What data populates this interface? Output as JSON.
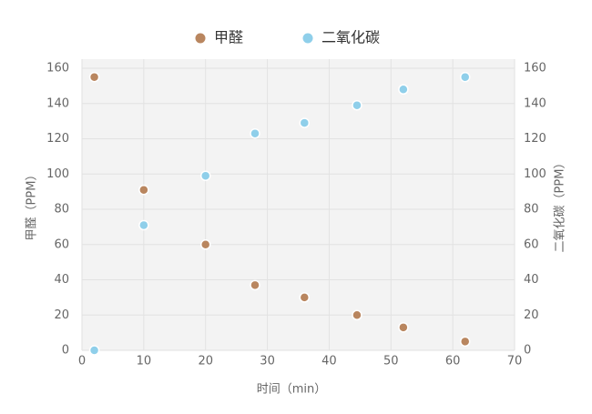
{
  "chart_data": {
    "type": "scatter",
    "xlabel": "时间（min）",
    "ylabel": "甲醛（PPM）",
    "y2label": "二氧化碳（PPM）",
    "xlim": [
      0,
      70
    ],
    "xticks": [
      0,
      10,
      20,
      30,
      40,
      50,
      60,
      70
    ],
    "ylim": [
      0,
      160
    ],
    "yticks": [
      0,
      20,
      40,
      60,
      80,
      100,
      120,
      140,
      160
    ],
    "y2lim": [
      0,
      160
    ],
    "y2ticks": [
      0,
      20,
      40,
      60,
      80,
      100,
      120,
      140,
      160
    ],
    "grid": true,
    "legend": "top",
    "series": [
      {
        "name": "甲醛",
        "color": "#b9865f",
        "axis": "y",
        "x": [
          2,
          10,
          20,
          28,
          36,
          44.5,
          52,
          62
        ],
        "values": [
          155,
          91,
          60,
          37,
          30,
          20,
          13,
          5
        ]
      },
      {
        "name": "二氧化碳",
        "color": "#8fcfea",
        "axis": "y2",
        "x": [
          2,
          10,
          20,
          28,
          36,
          44.5,
          52,
          62
        ],
        "values": [
          0,
          71,
          99,
          123,
          129,
          139,
          148,
          155
        ]
      }
    ]
  }
}
